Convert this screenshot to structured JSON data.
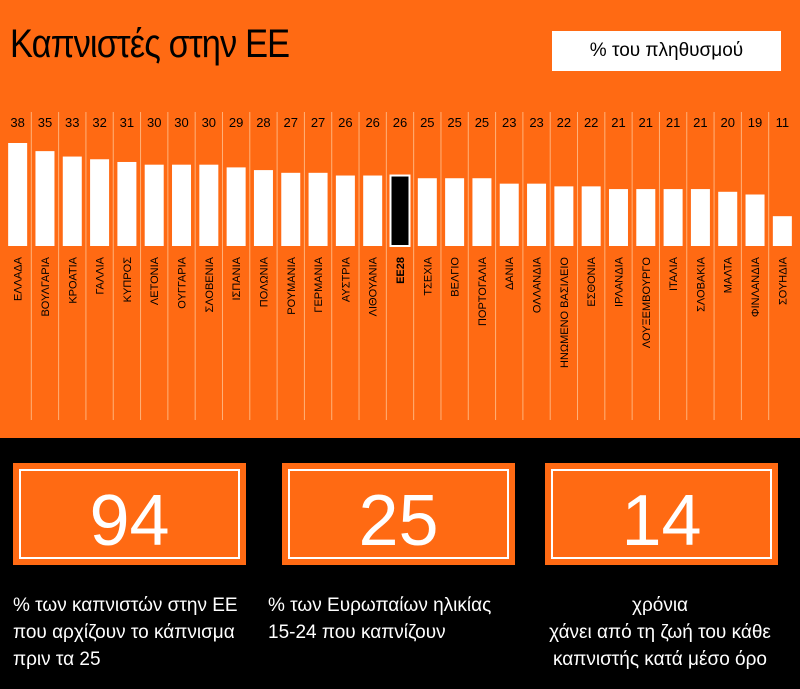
{
  "title": "Καπνιστές στην ΕΕ",
  "unit_label": "% του πληθυσμού",
  "chart_data": {
    "type": "bar",
    "categories": [
      "ΕΛΛΑΔΑ",
      "ΒΟΥΛΓΑΡΙΑ",
      "ΚΡΟΑΤΙΑ",
      "ΓΑΛΛΙΑ",
      "ΚΥΠΡΟΣ",
      "ΛΕΤΟΝΙΑ",
      "ΟΥΓΓΑΡΙΑ",
      "ΣΛΟΒΕΝΙΑ",
      "ΙΣΠΑΝΙΑ",
      "ΠΟΛΩΝΙΑ",
      "ΡΟΥΜΑΝΙΑ",
      "ΓΕΡΜΑΝΙΑ",
      "ΑΥΣΤΡΙΑ",
      "ΛΙΘΟΥΑΝΙΑ",
      "ΕΕ28",
      "ΤΣΕΧΙΑ",
      "ΒΕΛΓΙΟ",
      "ΠΟΡΤΟΓΑΛΙΑ",
      "ΔΑΝΙΑ",
      "ΟΛΛΑΝΔΙΑ",
      "ΗΝΩΜΕΝΟ ΒΑΣΙΛΕΙΟ",
      "ΕΣΘΟΝΙΑ",
      "ΙΡΛΑΝΔΙΑ",
      "ΛΟΥΞΕΜΒΟΥΡΓΟ",
      "ΙΤΑΛΙΑ",
      "ΣΛΟΒΑΚΙΑ",
      "ΜΑΛΤΑ",
      "ΦΙΝΛΑΝΔΙΑ",
      "ΣΟΥΗΔΙΑ"
    ],
    "values": [
      38,
      35,
      33,
      32,
      31,
      30,
      30,
      30,
      29,
      28,
      27,
      27,
      26,
      26,
      26,
      25,
      25,
      25,
      23,
      23,
      22,
      22,
      21,
      21,
      21,
      21,
      20,
      19,
      11
    ],
    "highlight": "ΕΕ28",
    "bar_color": "#ffffff",
    "highlight_color": "#000000"
  },
  "stats": [
    {
      "number": "94",
      "caption": "% των καπνιστών στην ΕΕ\nπου αρχίζουν το κάπνισμα\nπριν τα 25"
    },
    {
      "number": "25",
      "caption": "% των Ευρωπαίων ηλικίας\n15-24 που καπνίζουν"
    },
    {
      "number": "14",
      "caption": "χρόνια\nχάνει από τη ζωή του κάθε\nκαπνιστής κατά μέσο όρο"
    }
  ],
  "colors": {
    "orange": "#ff6a13",
    "black": "#000000",
    "white": "#ffffff"
  }
}
